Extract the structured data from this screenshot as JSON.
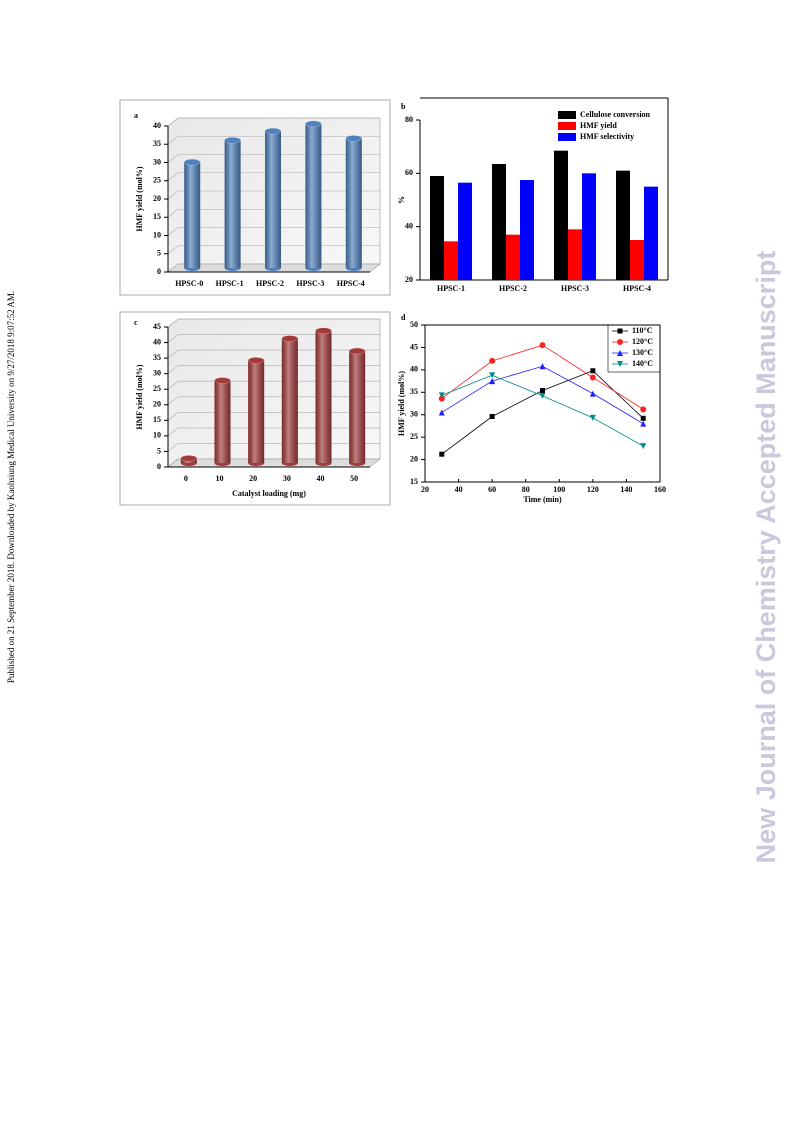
{
  "side_note": "Published on 21 September 2018. Downloaded by Kaohsiung Medical University on 9/27/2018 9:07:52 AM.",
  "watermark": "New Journal of Chemistry Accepted Manuscript",
  "chart_data": [
    {
      "type": "bar3d",
      "label": "a",
      "y_label": "HMF yield (mol%)",
      "categories": [
        "HPSC-0",
        "HPSC-1",
        "HPSC-2",
        "HPSC-3",
        "HPSC-4"
      ],
      "values": [
        29,
        35,
        37.5,
        39.5,
        35.5
      ],
      "color": "#4f81bd",
      "ylim": [
        0,
        40
      ],
      "yticks": [
        0,
        5,
        10,
        15,
        20,
        25,
        30,
        35,
        40
      ],
      "grid": true
    },
    {
      "type": "groupedbar",
      "label": "b",
      "y_label": "%",
      "categories": [
        "HPSC-1",
        "HPSC-2",
        "HPSC-3",
        "HPSC-4"
      ],
      "series": [
        {
          "name": "Cellulose conversion",
          "color": "#000000",
          "values": [
            59,
            63.5,
            68.5,
            61
          ]
        },
        {
          "name": "HMF yield",
          "color": "#ff0000",
          "values": [
            34.5,
            37,
            39,
            35
          ]
        },
        {
          "name": "HMF selectivity",
          "color": "#0000ff",
          "values": [
            56.5,
            57.5,
            60,
            55
          ]
        }
      ],
      "ylim": [
        20,
        80
      ],
      "yticks": [
        20,
        40,
        60,
        80
      ],
      "legend": "top-right"
    },
    {
      "type": "bar3d",
      "label": "c",
      "y_label": "HMF yield (mol%)",
      "x_label": "Catalyst loading (mg)",
      "categories": [
        "0",
        "10",
        "20",
        "30",
        "40",
        "50"
      ],
      "values": [
        1.5,
        26.5,
        33,
        40,
        42.5,
        36
      ],
      "color": "#a33a3a",
      "ylim": [
        0,
        45
      ],
      "yticks": [
        0,
        5,
        10,
        15,
        20,
        25,
        30,
        35,
        40,
        45
      ],
      "grid": true
    },
    {
      "type": "line",
      "label": "d",
      "y_label": "HMF yield (mol%)",
      "x_label": "Time (min)",
      "x": [
        30,
        60,
        90,
        120,
        150
      ],
      "series": [
        {
          "name": "110°C",
          "color": "#000000",
          "marker": "square",
          "values": [
            21.2,
            29.6,
            35.4,
            39.8,
            29.2
          ]
        },
        {
          "name": "120°C",
          "color": "#ff2020",
          "marker": "circle",
          "values": [
            33.6,
            42,
            45.5,
            38.3,
            31.2
          ]
        },
        {
          "name": "130°C",
          "color": "#2020ff",
          "marker": "triangle-up",
          "values": [
            30.5,
            37.5,
            40.8,
            34.7,
            28
          ]
        },
        {
          "name": "140°C",
          "color": "#008b8b",
          "marker": "triangle-down",
          "values": [
            34.3,
            38.8,
            34.2,
            29.3,
            23
          ]
        }
      ],
      "xlim": [
        20,
        160
      ],
      "xticks": [
        20,
        40,
        60,
        80,
        100,
        120,
        140,
        160
      ],
      "ylim": [
        15,
        50
      ],
      "yticks": [
        15,
        20,
        25,
        30,
        35,
        40,
        45,
        50
      ],
      "legend": "top-right"
    }
  ]
}
